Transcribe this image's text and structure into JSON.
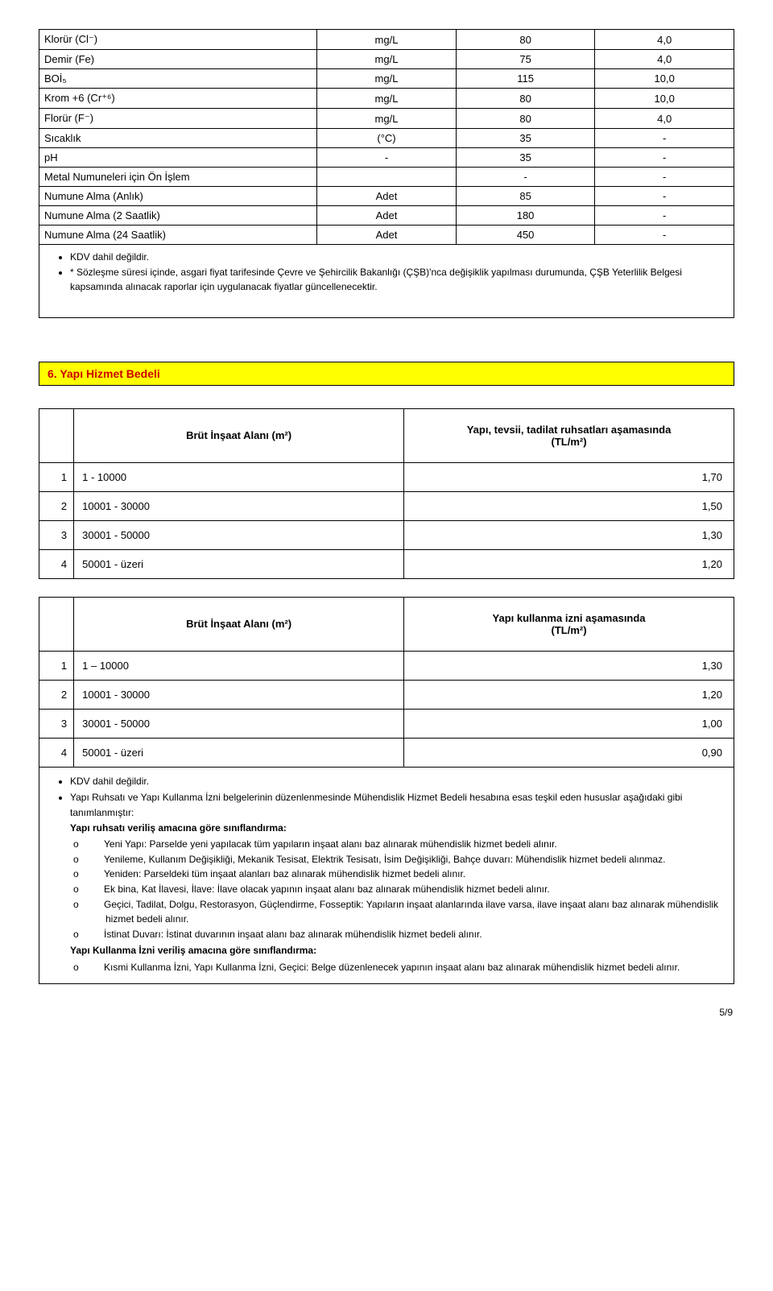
{
  "topTable": {
    "rows": [
      {
        "param": "Klorür (Cl⁻)",
        "unit": "mg/L",
        "v1": "80",
        "v2": "4,0"
      },
      {
        "param": "Demir (Fe)",
        "unit": "mg/L",
        "v1": "75",
        "v2": "4,0"
      },
      {
        "param": "BOİ₅",
        "unit": "mg/L",
        "v1": "115",
        "v2": "10,0"
      },
      {
        "param": "Krom +6 (Cr⁺⁶)",
        "unit": "mg/L",
        "v1": "80",
        "v2": "10,0"
      },
      {
        "param": "Florür (F⁻)",
        "unit": "mg/L",
        "v1": "80",
        "v2": "4,0"
      },
      {
        "param": "Sıcaklık",
        "unit": "(°C)",
        "v1": "35",
        "v2": "-"
      },
      {
        "param": "pH",
        "unit": "-",
        "v1": "35",
        "v2": "-"
      },
      {
        "param": "Metal Numuneleri için Ön İşlem",
        "unit": "",
        "v1": "-",
        "v2": "-"
      },
      {
        "param": "Numune Alma (Anlık)",
        "unit": "Adet",
        "v1": "85",
        "v2": "-"
      },
      {
        "param": "Numune Alma (2 Saatlik)",
        "unit": "Adet",
        "v1": "180",
        "v2": "-"
      },
      {
        "param": "Numune Alma (24 Saatlik)",
        "unit": "Adet",
        "v1": "450",
        "v2": "-"
      }
    ]
  },
  "notes1": {
    "bullet1": "KDV dahil değildir.",
    "bullet2": "* Sözleşme süresi içinde, asgari fiyat tarifesinde Çevre ve Şehircilik Bakanlığı (ÇŞB)'nca değişiklik yapılması durumunda, ÇŞB Yeterlilik Belgesi kapsamında alınacak raporlar için uygulanacak fiyatlar güncellenecektir."
  },
  "sectionTitle": "6. Yapı Hizmet Bedeli",
  "tableA": {
    "hdrLeft": "Brüt İnşaat Alanı (m²)",
    "hdrRight": "Yapı, tevsii, tadilat ruhsatları aşamasında\n(TL/m²)",
    "rows": [
      {
        "idx": "1",
        "range": "1 - 10000",
        "val": "1,70"
      },
      {
        "idx": "2",
        "range": "10001 - 30000",
        "val": "1,50"
      },
      {
        "idx": "3",
        "range": "30001 - 50000",
        "val": "1,30"
      },
      {
        "idx": "4",
        "range": "50001 - üzeri",
        "val": "1,20"
      }
    ]
  },
  "tableB": {
    "hdrLeft": "Brüt İnşaat Alanı (m²)",
    "hdrRight": "Yapı kullanma izni aşamasında\n(TL/m²)",
    "rows": [
      {
        "idx": "1",
        "range": "1 – 10000",
        "val": "1,30"
      },
      {
        "idx": "2",
        "range": "10001 - 30000",
        "val": "1,20"
      },
      {
        "idx": "3",
        "range": "30001 - 50000",
        "val": "1,00"
      },
      {
        "idx": "4",
        "range": "50001 - üzeri",
        "val": "0,90"
      }
    ]
  },
  "notes2": {
    "b1": "KDV dahil değildir.",
    "b2": "Yapı Ruhsatı ve Yapı Kullanma İzni belgelerinin düzenlenmesinde Mühendislik Hizmet Bedeli hesabına esas teşkil eden hususlar aşağıdaki gibi tanımlanmıştır:",
    "group1Title": "Yapı ruhsatı veriliş amacına göre sınıflandırma:",
    "g1": [
      "Yeni Yapı:  Parselde yeni yapılacak tüm yapıların inşaat alanı baz alınarak mühendislik hizmet bedeli alınır.",
      "Yenileme, Kullanım Değişikliği, Mekanik Tesisat, Elektrik Tesisatı, İsim Değişikliği, Bahçe duvarı: Mühendislik hizmet bedeli alınmaz.",
      "Yeniden:  Parseldeki tüm inşaat alanları baz alınarak mühendislik hizmet bedeli alınır.",
      "Ek bina, Kat İlavesi, İlave: İlave olacak yapının inşaat alanı baz alınarak mühendislik hizmet bedeli alınır.",
      "Geçici, Tadilat, Dolgu, Restorasyon, Güçlendirme, Fosseptik: Yapıların inşaat alanlarında ilave varsa, ilave inşaat alanı baz alınarak mühendislik hizmet bedeli alınır.",
      "İstinat Duvarı: İstinat duvarının inşaat alanı baz alınarak mühendislik hizmet bedeli alınır."
    ],
    "group2Title": "Yapı Kullanma İzni veriliş amacına göre sınıflandırma:",
    "g2": [
      "Kısmi Kullanma İzni, Yapı Kullanma İzni, Geçici: Belge düzenlenecek yapının inşaat alanı baz alınarak mühendislik hizmet bedeli alınır."
    ]
  },
  "pageNum": "5/9"
}
